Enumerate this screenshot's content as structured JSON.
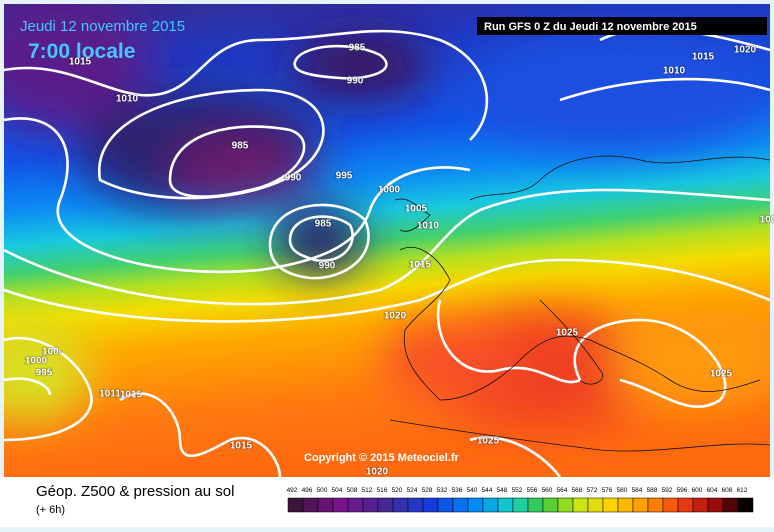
{
  "header": {
    "date": "Jeudi 12 novembre 2015",
    "time": "7:00 locale",
    "run": "Run GFS 0 Z du Jeudi 12 novembre 2015"
  },
  "isobar_labels": [
    1015,
    1010,
    985,
    990,
    985,
    990,
    995,
    1000,
    1005,
    1010,
    985,
    990,
    1015,
    1020,
    1025,
    1025,
    1010,
    1015,
    1020,
    "100-",
    1000,
    995,
    1011,
    1015,
    1015,
    1025,
    1020,
    100
  ],
  "copyright": "Copyright © 2015 Meteociel.fr",
  "footer": {
    "title": "Géop. Z500 & pression au sol",
    "step": "(+ 6h)"
  },
  "colorbar": {
    "labels": [
      492,
      496,
      500,
      504,
      508,
      512,
      516,
      520,
      524,
      528,
      532,
      536,
      540,
      544,
      548,
      552,
      556,
      560,
      564,
      568,
      572,
      576,
      580,
      584,
      588,
      592,
      596,
      600,
      604,
      608,
      612
    ]
  }
}
